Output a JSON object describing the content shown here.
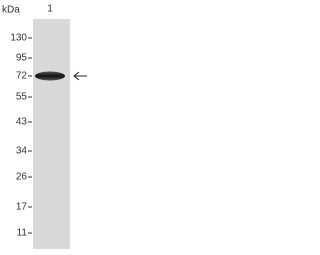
{
  "unit": "kDa",
  "lane_labels": [
    "1"
  ],
  "markers": [
    "130",
    "95",
    "72",
    "55",
    "43",
    "34",
    "26",
    "17",
    "11"
  ]
}
